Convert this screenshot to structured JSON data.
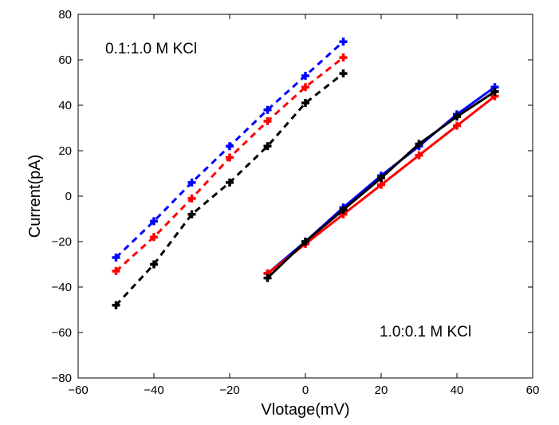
{
  "chart_data": {
    "type": "line",
    "xlabel": "Vlotage(mV)",
    "ylabel": "Current(pA)",
    "xlim": [
      -60,
      60
    ],
    "ylim": [
      -80,
      80
    ],
    "xticks": [
      -60,
      -40,
      -20,
      0,
      20,
      40,
      60
    ],
    "yticks": [
      -80,
      -60,
      -40,
      -20,
      0,
      20,
      40,
      60,
      80
    ],
    "xtick_labels": [
      "−60",
      "−40",
      "−20",
      "0",
      "20",
      "40",
      "60"
    ],
    "ytick_labels": [
      "−80",
      "−60",
      "−40",
      "−20",
      "0",
      "20",
      "40",
      "60",
      "80"
    ],
    "grid": false,
    "annotations": [
      "0.1:1.0 M KCl",
      "1.0:0.1 M KCl"
    ],
    "series": [
      {
        "group": "0.1:1.0 M KCl",
        "color": "#0000ff",
        "style": "dashed",
        "x": [
          -50,
          -40,
          -30,
          -20,
          -10,
          0,
          10
        ],
        "y": [
          -27,
          -11,
          6,
          22,
          38,
          53,
          68
        ]
      },
      {
        "group": "0.1:1.0 M KCl",
        "color": "#ff0000",
        "style": "dashed",
        "x": [
          -50,
          -40,
          -30,
          -20,
          -10,
          0,
          10
        ],
        "y": [
          -33,
          -18,
          -1,
          17,
          33,
          48,
          61
        ]
      },
      {
        "group": "0.1:1.0 M KCl",
        "color": "#000000",
        "style": "dashed",
        "x": [
          -50,
          -40,
          -30,
          -20,
          -10,
          0,
          10
        ],
        "y": [
          -48,
          -30,
          -8,
          6,
          22,
          41,
          54
        ]
      },
      {
        "group": "1.0:0.1 M KCl",
        "color": "#0000ff",
        "style": "solid",
        "x": [
          -10,
          0,
          10,
          20,
          30,
          40,
          50
        ],
        "y": [
          -34,
          -20,
          -5,
          9,
          22,
          36,
          48
        ]
      },
      {
        "group": "1.0:0.1 M KCl",
        "color": "#ff0000",
        "style": "solid",
        "x": [
          -10,
          0,
          10,
          20,
          30,
          40,
          50
        ],
        "y": [
          -34,
          -21,
          -8,
          5,
          18,
          31,
          44
        ]
      },
      {
        "group": "1.0:0.1 M KCl",
        "color": "#000000",
        "style": "solid",
        "x": [
          -10,
          0,
          10,
          20,
          30,
          40,
          50
        ],
        "y": [
          -36,
          -20,
          -6,
          8,
          23,
          35,
          46
        ]
      }
    ]
  }
}
